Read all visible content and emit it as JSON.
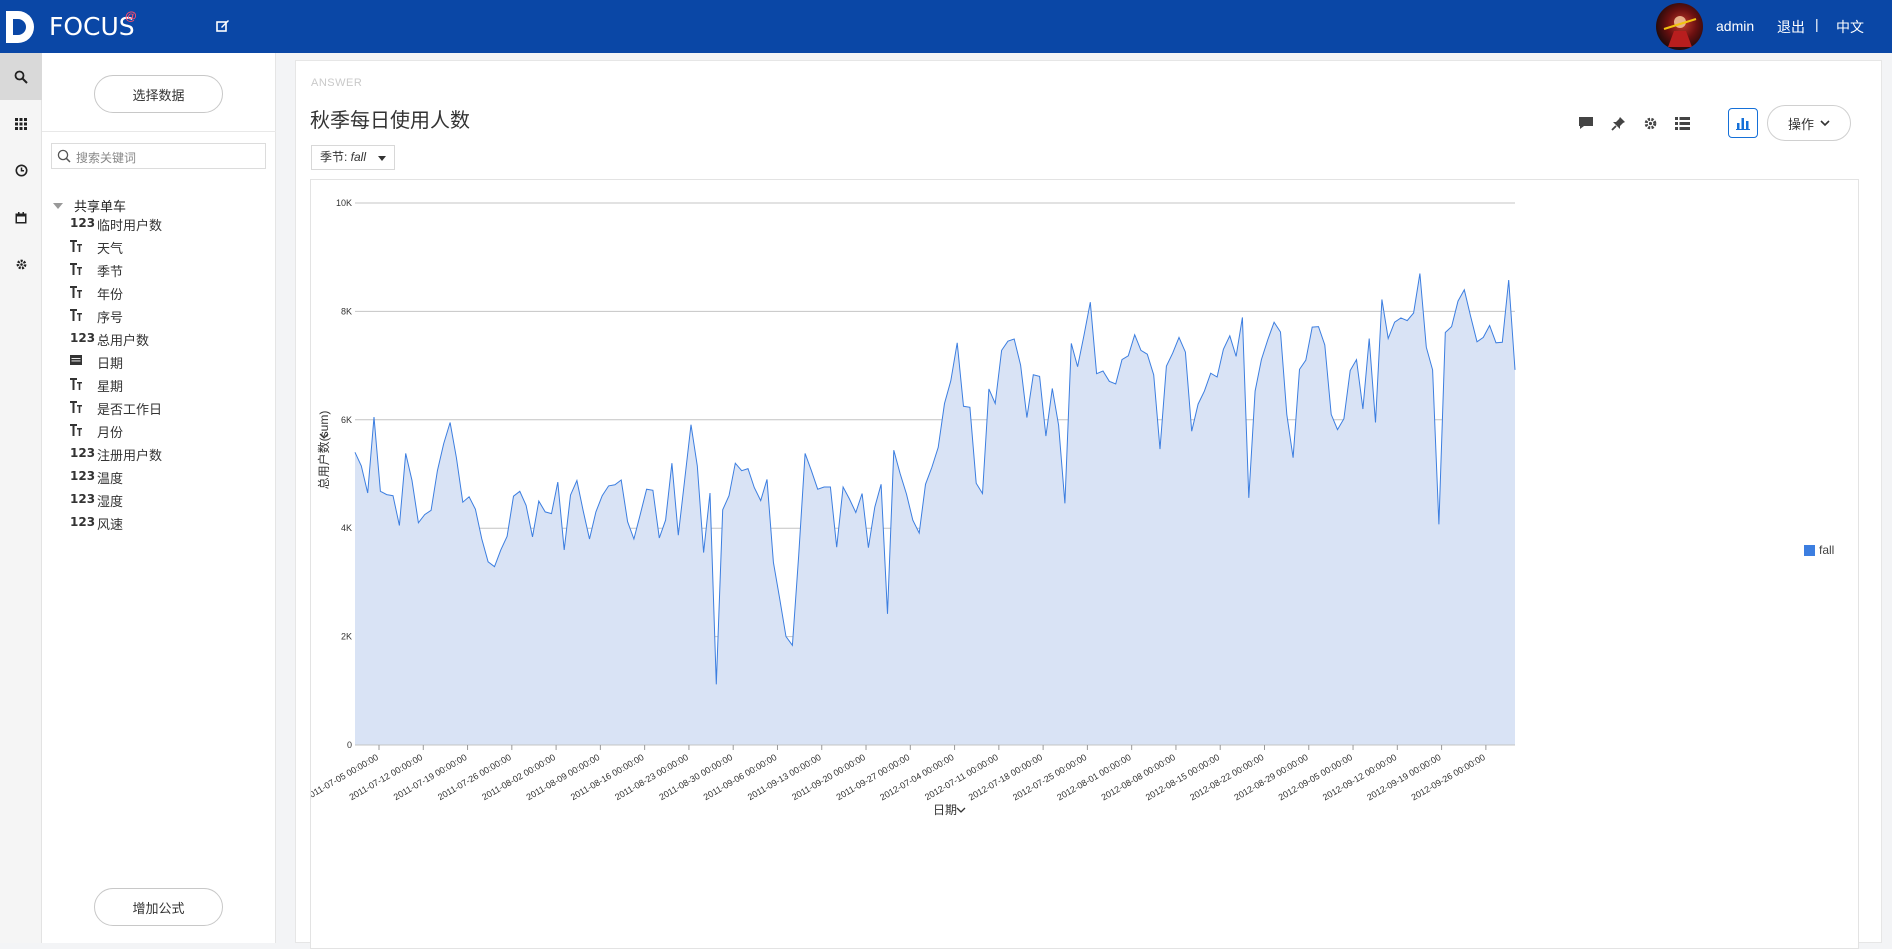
{
  "app": {
    "logo_text": "FOCUS",
    "logo_superscript": "@"
  },
  "topbar": {
    "user": "admin",
    "logout": "退出",
    "separator": "|",
    "language": "中文"
  },
  "leftnav": {
    "items": [
      {
        "icon": "search-icon",
        "active": true
      },
      {
        "icon": "grid-icon",
        "active": false
      },
      {
        "icon": "clock-icon",
        "active": false
      },
      {
        "icon": "calendar-icon",
        "active": false
      },
      {
        "icon": "gear-icon",
        "active": false
      }
    ]
  },
  "panel": {
    "select_data": "选择数据",
    "search_placeholder": "搜索关键词",
    "tree_root": "共享单车",
    "fields": [
      {
        "type": "123",
        "label": "临时用户数"
      },
      {
        "type": "T",
        "label": "天气"
      },
      {
        "type": "T",
        "label": "季节"
      },
      {
        "type": "T",
        "label": "年份"
      },
      {
        "type": "T",
        "label": "序号"
      },
      {
        "type": "123",
        "label": "总用户数"
      },
      {
        "type": "date",
        "label": "日期"
      },
      {
        "type": "T",
        "label": "星期"
      },
      {
        "type": "T",
        "label": "是否工作日"
      },
      {
        "type": "T",
        "label": "月份"
      },
      {
        "type": "123",
        "label": "注册用户数"
      },
      {
        "type": "123",
        "label": "温度"
      },
      {
        "type": "123",
        "label": "湿度"
      },
      {
        "type": "123",
        "label": "风速"
      }
    ],
    "add_formula": "增加公式"
  },
  "answer": {
    "label": "ANSWER",
    "title": "秋季每日使用人数",
    "filter_key": "季节: ",
    "filter_value": "fall",
    "operate": "操作"
  },
  "colors": {
    "topbar": "#0a47a6",
    "series": "#3c7ee0",
    "area": "#d9e3f5"
  },
  "chart_data": {
    "type": "area",
    "ylabel": "总用户数(sum)",
    "xlabel": "日期",
    "ylim": [
      0,
      10000
    ],
    "yticks": [
      {
        "v": 0,
        "label": "0"
      },
      {
        "v": 2000,
        "label": "2K"
      },
      {
        "v": 4000,
        "label": "4K"
      },
      {
        "v": 6000,
        "label": "6K"
      },
      {
        "v": 8000,
        "label": "8K"
      },
      {
        "v": 10000,
        "label": "10K"
      }
    ],
    "xticks": [
      "2011-07-05 00:00:00",
      "2011-07-12 00:00:00",
      "2011-07-19 00:00:00",
      "2011-07-26 00:00:00",
      "2011-08-02 00:00:00",
      "2011-08-09 00:00:00",
      "2011-08-16 00:00:00",
      "2011-08-23 00:00:00",
      "2011-08-30 00:00:00",
      "2011-09-06 00:00:00",
      "2011-09-13 00:00:00",
      "2011-09-20 00:00:00",
      "2011-09-27 00:00:00",
      "2012-07-04 00:00:00",
      "2012-07-11 00:00:00",
      "2012-07-18 00:00:00",
      "2012-07-25 00:00:00",
      "2012-08-01 00:00:00",
      "2012-08-08 00:00:00",
      "2012-08-15 00:00:00",
      "2012-08-22 00:00:00",
      "2012-08-29 00:00:00",
      "2012-09-05 00:00:00",
      "2012-09-12 00:00:00",
      "2012-09-19 00:00:00",
      "2012-09-26 00:00:00"
    ],
    "legend": [
      "fall"
    ],
    "legend_position": "right",
    "grid": true,
    "series": [
      {
        "name": "fall",
        "values": [
          5400,
          5150,
          4650,
          6050,
          4680,
          4620,
          4600,
          4050,
          5380,
          4880,
          4100,
          4250,
          4330,
          5060,
          5560,
          5950,
          5300,
          4480,
          4580,
          4350,
          3800,
          3380,
          3290,
          3600,
          3850,
          4590,
          4680,
          4420,
          3840,
          4500,
          4300,
          4270,
          4850,
          3600,
          4610,
          4880,
          4320,
          3800,
          4300,
          4600,
          4780,
          4800,
          4890,
          4120,
          3800,
          4250,
          4720,
          4700,
          3820,
          4150,
          5200,
          3870,
          4880,
          5910,
          5150,
          3550,
          4650,
          1120,
          4340,
          4600,
          5200,
          5060,
          5100,
          4750,
          4510,
          4900,
          3370,
          2700,
          2000,
          1840,
          3500,
          5380,
          5060,
          4720,
          4760,
          4760,
          3650,
          4760,
          4540,
          4290,
          4640,
          3640,
          4390,
          4810,
          2420,
          5440,
          5010,
          4630,
          4150,
          3910,
          4810,
          5120,
          5490,
          6300,
          6720,
          7420,
          6250,
          6230,
          4830,
          4640,
          6570,
          6300,
          7280,
          7450,
          7490,
          7010,
          6040,
          6830,
          6800,
          5700,
          6580,
          5900,
          4460,
          7410,
          6980,
          7560,
          8170,
          6850,
          6900,
          6710,
          6660,
          7110,
          7180,
          7570,
          7280,
          7210,
          6830,
          5460,
          6990,
          7230,
          7520,
          7250,
          5790,
          6290,
          6530,
          6860,
          6790,
          7300,
          7550,
          7170,
          7890,
          4560,
          6530,
          7110,
          7480,
          7800,
          7620,
          6100,
          5300,
          6930,
          7100,
          7710,
          7720,
          7380,
          6100,
          5820,
          6020,
          6910,
          7110,
          6200,
          7500,
          5950,
          8220,
          7500,
          7800,
          7880,
          7830,
          7970,
          8700,
          7340,
          6920,
          4070,
          7610,
          7720,
          8190,
          8400,
          7910,
          7440,
          7520,
          7740,
          7420,
          7430,
          8580,
          6920
        ]
      }
    ]
  }
}
